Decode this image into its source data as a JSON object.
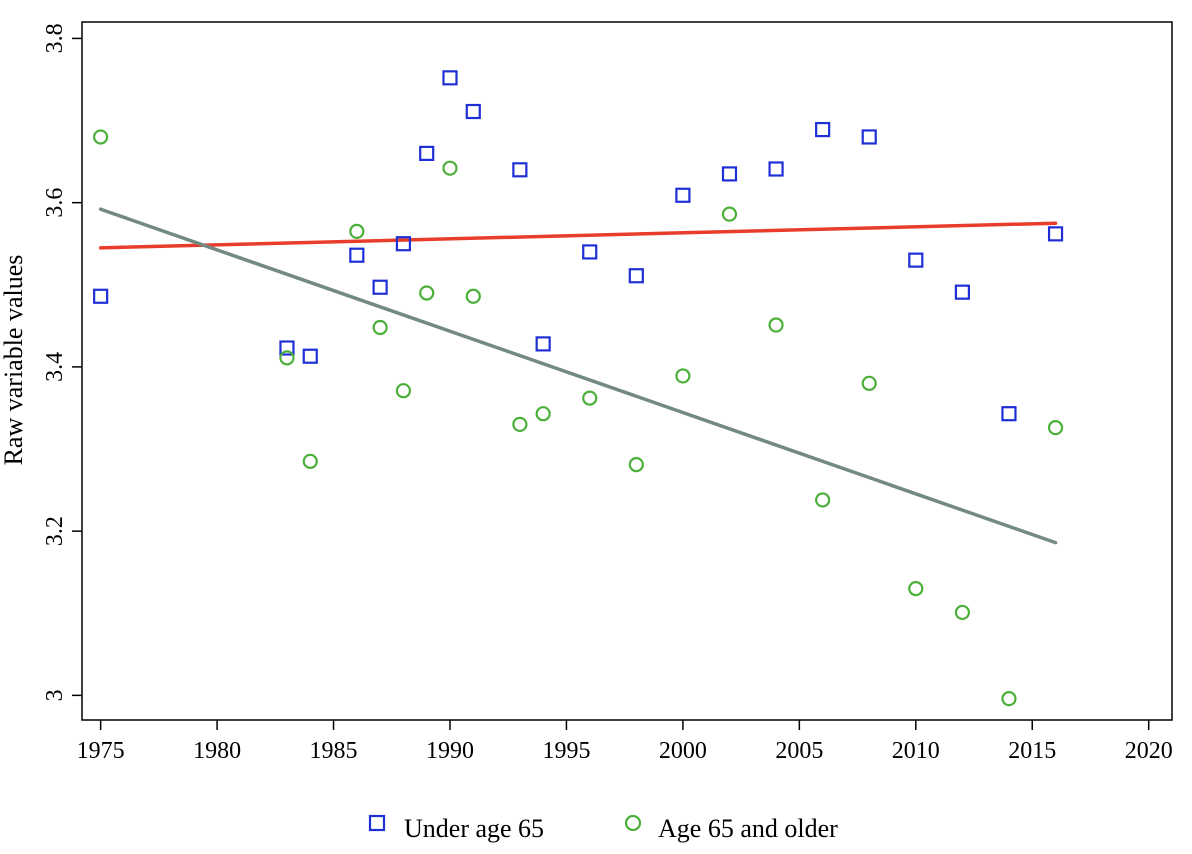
{
  "chart_data": {
    "type": "scatter",
    "title": "",
    "xlabel": "",
    "ylabel": "Raw variable values",
    "xlim": [
      1974.2,
      2021
    ],
    "ylim": [
      2.97,
      3.82
    ],
    "xticks": [
      1975,
      1980,
      1985,
      1990,
      1995,
      2000,
      2005,
      2010,
      2015,
      2020
    ],
    "yticks": [
      3,
      3.2,
      3.4,
      3.6,
      3.8
    ],
    "grid": false,
    "legend_position": "bottom",
    "series": [
      {
        "name": "Under age 65",
        "marker": "square",
        "color": "#1f2fd6",
        "points": [
          [
            1975,
            3.486
          ],
          [
            1983,
            3.423
          ],
          [
            1984,
            3.413
          ],
          [
            1986,
            3.536
          ],
          [
            1987,
            3.497
          ],
          [
            1988,
            3.55
          ],
          [
            1989,
            3.66
          ],
          [
            1990,
            3.752
          ],
          [
            1991,
            3.711
          ],
          [
            1993,
            3.64
          ],
          [
            1994,
            3.428
          ],
          [
            1996,
            3.54
          ],
          [
            1998,
            3.511
          ],
          [
            2000,
            3.609
          ],
          [
            2002,
            3.635
          ],
          [
            2004,
            3.641
          ],
          [
            2006,
            3.689
          ],
          [
            2008,
            3.68
          ],
          [
            2010,
            3.53
          ],
          [
            2012,
            3.491
          ],
          [
            2014,
            3.343
          ],
          [
            2016,
            3.562
          ]
        ],
        "trend": [
          [
            1975,
            3.545
          ],
          [
            2016,
            3.575
          ]
        ],
        "trend_color": "#e83d2c"
      },
      {
        "name": "Age 65 and older",
        "marker": "circle",
        "color": "#4caf3a",
        "points": [
          [
            1975,
            3.68
          ],
          [
            1983,
            3.411
          ],
          [
            1984,
            3.285
          ],
          [
            1986,
            3.565
          ],
          [
            1987,
            3.448
          ],
          [
            1988,
            3.371
          ],
          [
            1989,
            3.49
          ],
          [
            1990,
            3.642
          ],
          [
            1991,
            3.486
          ],
          [
            1993,
            3.33
          ],
          [
            1994,
            3.343
          ],
          [
            1996,
            3.362
          ],
          [
            1998,
            3.281
          ],
          [
            2000,
            3.389
          ],
          [
            2002,
            3.586
          ],
          [
            2004,
            3.451
          ],
          [
            2006,
            3.238
          ],
          [
            2008,
            3.38
          ],
          [
            2010,
            3.13
          ],
          [
            2012,
            3.101
          ],
          [
            2014,
            2.996
          ],
          [
            2016,
            3.326
          ]
        ],
        "trend": [
          [
            1975,
            3.592
          ],
          [
            2016,
            3.186
          ]
        ],
        "trend_color": "#728a82"
      }
    ]
  }
}
